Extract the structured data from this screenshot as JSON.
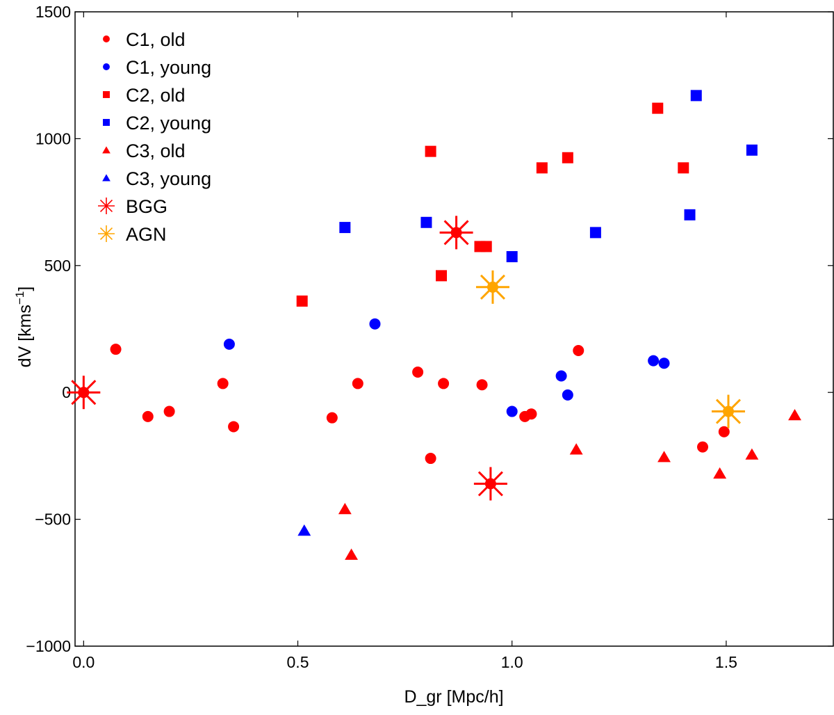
{
  "chart_data": {
    "type": "scatter",
    "xlabel": "D_gr [Mpc/h]",
    "ylabel_main": "dV [kms",
    "ylabel_sup": "−1",
    "ylabel_close": "]",
    "xlim": [
      -0.02,
      1.75
    ],
    "ylim": [
      -1000,
      1500
    ],
    "x_ticks": [
      0.0,
      0.5,
      1.0,
      1.5
    ],
    "x_tick_labels": [
      "0.0",
      "0.5",
      "1.0",
      "1.5"
    ],
    "y_ticks": [
      -1000,
      -500,
      0,
      500,
      1000,
      1500
    ],
    "y_tick_labels": [
      "−1000",
      "−500",
      "0",
      "500",
      "1000",
      "1500"
    ],
    "legend_position": "top-left",
    "colors": {
      "old": "#ff0000",
      "young": "#0000ff",
      "agn": "#ffa500"
    },
    "series": [
      {
        "name": "C1, old",
        "marker": "circle",
        "color": "#ff0000",
        "points": [
          [
            0.0,
            0
          ],
          [
            0.075,
            170
          ],
          [
            0.15,
            -95
          ],
          [
            0.2,
            -75
          ],
          [
            0.325,
            35
          ],
          [
            0.35,
            -135
          ],
          [
            0.58,
            -100
          ],
          [
            0.64,
            35
          ],
          [
            0.78,
            80
          ],
          [
            0.84,
            35
          ],
          [
            0.93,
            30
          ],
          [
            1.03,
            -95
          ],
          [
            1.045,
            -85
          ],
          [
            1.155,
            165
          ],
          [
            1.445,
            -215
          ],
          [
            1.495,
            -155
          ],
          [
            0.81,
            -260
          ]
        ]
      },
      {
        "name": "C1, young",
        "marker": "circle",
        "color": "#0000ff",
        "points": [
          [
            0.34,
            190
          ],
          [
            0.68,
            270
          ],
          [
            1.0,
            -75
          ],
          [
            1.115,
            65
          ],
          [
            1.13,
            -10
          ],
          [
            1.33,
            125
          ],
          [
            1.355,
            115
          ]
        ]
      },
      {
        "name": "C2, old",
        "marker": "square",
        "color": "#ff0000",
        "points": [
          [
            0.51,
            360
          ],
          [
            0.81,
            950
          ],
          [
            0.835,
            460
          ],
          [
            0.925,
            575
          ],
          [
            0.94,
            575
          ],
          [
            1.07,
            885
          ],
          [
            1.13,
            925
          ],
          [
            1.34,
            1120
          ],
          [
            1.4,
            885
          ]
        ]
      },
      {
        "name": "C2, young",
        "marker": "square",
        "color": "#0000ff",
        "points": [
          [
            0.61,
            650
          ],
          [
            0.8,
            670
          ],
          [
            1.0,
            535
          ],
          [
            1.195,
            630
          ],
          [
            1.415,
            700
          ],
          [
            1.43,
            1170
          ],
          [
            1.56,
            955
          ]
        ]
      },
      {
        "name": "C3, old",
        "marker": "triangle",
        "color": "#ff0000",
        "points": [
          [
            0.61,
            -460
          ],
          [
            0.625,
            -640
          ],
          [
            1.15,
            -225
          ],
          [
            1.355,
            -255
          ],
          [
            1.485,
            -320
          ],
          [
            1.56,
            -245
          ],
          [
            1.66,
            -90
          ]
        ]
      },
      {
        "name": "C3, young",
        "marker": "triangle",
        "color": "#0000ff",
        "points": [
          [
            0.515,
            -545
          ]
        ]
      },
      {
        "name": "BGG",
        "marker": "asterisk",
        "color": "#ff0000",
        "points": [
          [
            0.0,
            0
          ],
          [
            0.87,
            630
          ],
          [
            0.95,
            -360
          ]
        ]
      },
      {
        "name": "AGN",
        "marker": "asterisk",
        "color": "#ffa500",
        "points": [
          [
            0.955,
            415
          ],
          [
            1.505,
            -75
          ]
        ]
      }
    ]
  }
}
